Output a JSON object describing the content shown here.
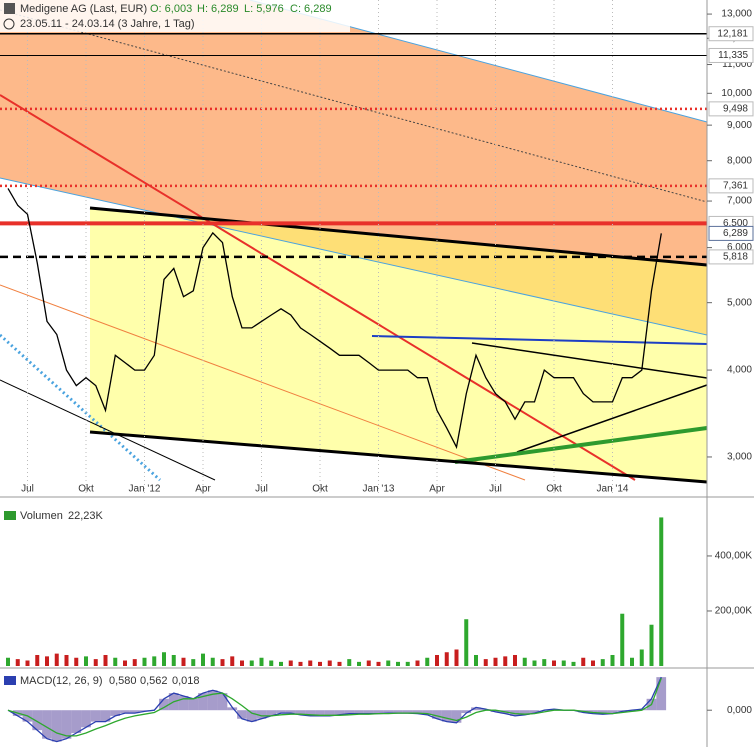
{
  "header": {
    "title": "Medigene AG (Last, EUR)",
    "ohlc": [
      "O: 6,003",
      "H: 6,289",
      "L: 5,976",
      "C: 6,289"
    ],
    "range": "23.05.11 - 24.03.14 (3 Jahre, 1 Tag)"
  },
  "chart_data": [
    {
      "type": "line",
      "log": true,
      "categories": [
        null,
        null,
        "Jul",
        null,
        null,
        null,
        null,
        null,
        "Okt",
        null,
        null,
        null,
        null,
        null,
        "Jan '12",
        null,
        null,
        null,
        null,
        null,
        "Apr",
        null,
        null,
        null,
        null,
        null,
        "Jul",
        null,
        null,
        null,
        null,
        null,
        "Okt",
        null,
        null,
        null,
        null,
        null,
        "Jan '13",
        null,
        null,
        null,
        null,
        null,
        "Apr",
        null,
        null,
        null,
        null,
        null,
        "Jul",
        null,
        null,
        null,
        null,
        null,
        "Okt",
        null,
        null,
        null,
        null,
        null,
        "Jan '14",
        null,
        null,
        null,
        null,
        null
      ],
      "series": [
        {
          "color": "#000000",
          "values": [
            7.3,
            6.9,
            6.7,
            5.7,
            4.7,
            4.5,
            4.0,
            3.8,
            3.9,
            3.8,
            3.5,
            4.2,
            4.1,
            4.0,
            4.0,
            4.2,
            5.4,
            5.6,
            5.1,
            5.2,
            6.0,
            6.3,
            6.1,
            5.1,
            4.6,
            4.6,
            4.7,
            4.8,
            4.9,
            4.8,
            4.6,
            4.5,
            4.4,
            4.3,
            4.2,
            4.2,
            4.2,
            4.1,
            4.0,
            4.0,
            4.0,
            4.0,
            3.9,
            3.9,
            3.5,
            3.3,
            3.1,
            3.7,
            4.2,
            3.9,
            3.7,
            3.6,
            3.4,
            3.6,
            3.6,
            4.0,
            3.9,
            3.9,
            3.9,
            3.7,
            3.6,
            3.6,
            3.6,
            3.9,
            3.9,
            4.0,
            5.2,
            6.289
          ]
        }
      ],
      "ylim": [
        2.645,
        13.62
      ],
      "yticks": [
        {
          "value": 3,
          "label": "3,000"
        },
        {
          "value": 4,
          "label": "4,000"
        },
        {
          "value": 5,
          "label": "5,000"
        },
        {
          "value": 6,
          "label": "6,000"
        },
        {
          "value": 7,
          "label": "7,000"
        },
        {
          "value": 8,
          "label": "8,000"
        },
        {
          "value": 9,
          "label": "9,000"
        },
        {
          "value": 10,
          "label": "10,000"
        },
        {
          "value": 11,
          "label": "11,000"
        },
        {
          "value": 12,
          "label": "12,000"
        },
        {
          "value": 13,
          "label": "13,000"
        }
      ],
      "levels": [
        {
          "value": 12.181,
          "label": "12,181",
          "color": "#000000",
          "style": "solid"
        },
        {
          "value": 11.335,
          "label": "11,335",
          "color": "#000000",
          "style": "thin"
        },
        {
          "value": 9.498,
          "label": "9,498",
          "color": "#e8302a",
          "style": "dotted"
        },
        {
          "value": 7.361,
          "label": "7,361",
          "color": "#e8302a",
          "style": "dotted"
        },
        {
          "value": 6.5,
          "label": "6,500",
          "color": "#e8302a",
          "style": "thick"
        },
        {
          "value": 6.289,
          "label": "6,289",
          "color": "#5a6f9a",
          "style": "marker"
        },
        {
          "value": 5.818,
          "label": "5,818",
          "color": "#000000",
          "style": "dashed"
        }
      ]
    },
    {
      "type": "bar",
      "title": "Volumen",
      "value_text": "22,23K",
      "up_color": "#2ea82e",
      "down_color": "#c81e1e",
      "values": [
        30000,
        25000,
        20000,
        40000,
        35000,
        45000,
        40000,
        30000,
        35000,
        25000,
        40000,
        30000,
        20000,
        25000,
        30000,
        35000,
        50000,
        40000,
        30000,
        25000,
        45000,
        30000,
        25000,
        35000,
        20000,
        20000,
        30000,
        20000,
        15000,
        20000,
        15000,
        20000,
        15000,
        20000,
        15000,
        25000,
        15000,
        20000,
        15000,
        20000,
        15000,
        15000,
        20000,
        30000,
        40000,
        50000,
        60000,
        170000,
        40000,
        25000,
        30000,
        35000,
        40000,
        30000,
        20000,
        25000,
        20000,
        20000,
        15000,
        30000,
        20000,
        25000,
        40000,
        190000,
        30000,
        60000,
        150000,
        540000
      ],
      "ylim": [
        0,
        567000
      ],
      "yticks": [
        {
          "value": 200000,
          "label": "200,00K"
        },
        {
          "value": 400000,
          "label": "400,00K"
        }
      ]
    },
    {
      "type": "macd",
      "title": "MACD(12, 26, 9)",
      "value_texts": [
        "0,580",
        "0,562",
        "0,018"
      ],
      "fill": "#6a5aa8",
      "series": [
        {
          "color": "#2b3fb0",
          "values": [
            0,
            -0.1,
            -0.2,
            -0.35,
            -0.5,
            -0.55,
            -0.5,
            -0.4,
            -0.3,
            -0.2,
            -0.2,
            -0.1,
            -0.05,
            -0.05,
            -0.02,
            0,
            0.2,
            0.3,
            0.25,
            0.2,
            0.3,
            0.35,
            0.3,
            0.05,
            -0.15,
            -0.2,
            -0.15,
            -0.1,
            -0.05,
            -0.05,
            -0.08,
            -0.1,
            -0.1,
            -0.1,
            -0.08,
            -0.06,
            -0.06,
            -0.06,
            -0.06,
            -0.05,
            -0.05,
            -0.05,
            -0.06,
            -0.08,
            -0.15,
            -0.2,
            -0.22,
            -0.05,
            0.05,
            0.02,
            -0.03,
            -0.06,
            -0.1,
            -0.08,
            -0.05,
            0,
            0.02,
            0,
            0,
            -0.04,
            -0.06,
            -0.07,
            -0.06,
            -0.02,
            0,
            0.02,
            0.2,
            0.58
          ]
        },
        {
          "color": "#2ea82e",
          "values": [
            0,
            -0.05,
            -0.1,
            -0.2,
            -0.3,
            -0.4,
            -0.45,
            -0.45,
            -0.4,
            -0.33,
            -0.27,
            -0.2,
            -0.14,
            -0.1,
            -0.07,
            -0.04,
            0.05,
            0.15,
            0.2,
            0.2,
            0.24,
            0.28,
            0.3,
            0.2,
            0.08,
            -0.05,
            -0.1,
            -0.1,
            -0.08,
            -0.07,
            -0.07,
            -0.08,
            -0.09,
            -0.09,
            -0.09,
            -0.08,
            -0.07,
            -0.07,
            -0.06,
            -0.06,
            -0.05,
            -0.05,
            -0.05,
            -0.06,
            -0.1,
            -0.14,
            -0.18,
            -0.12,
            -0.04,
            0,
            0,
            -0.03,
            -0.06,
            -0.07,
            -0.06,
            -0.03,
            0,
            0,
            0,
            -0.02,
            -0.04,
            -0.05,
            -0.06,
            -0.04,
            -0.02,
            0,
            0.1,
            0.562
          ]
        }
      ],
      "ylim": [
        -0.61,
        0.67
      ],
      "yticks": [
        {
          "value": 0,
          "label": "0,000"
        }
      ]
    }
  ]
}
